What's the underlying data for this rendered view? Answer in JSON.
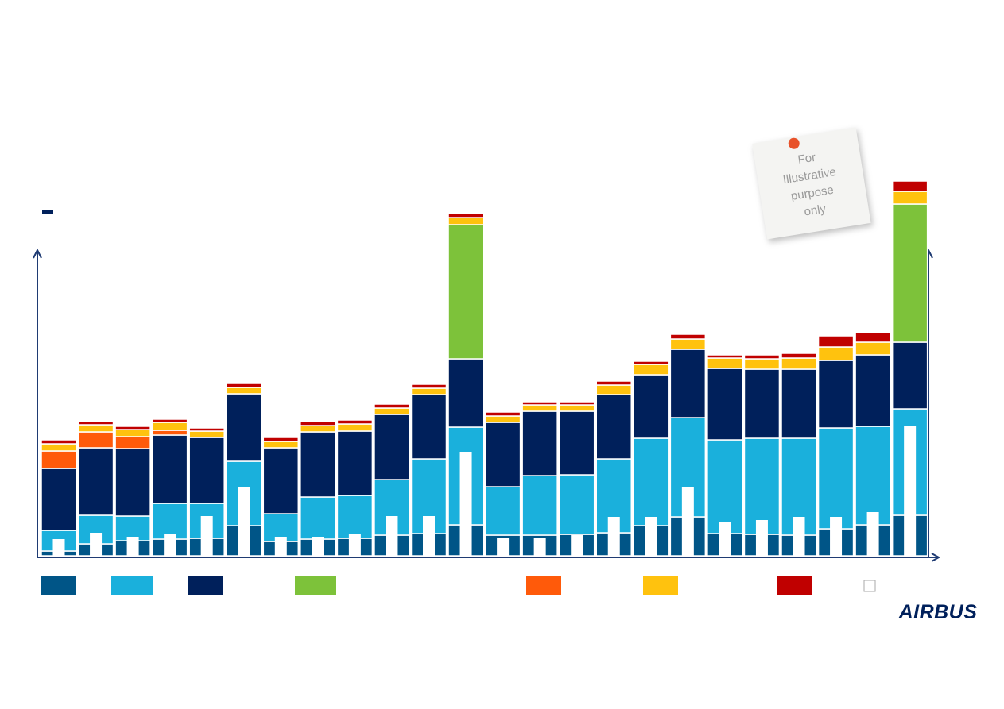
{
  "chart_data": {
    "type": "stacked_bar",
    "categories": [
      null,
      null,
      null,
      null,
      null,
      null,
      null,
      null,
      null,
      null,
      null,
      null,
      null,
      null,
      null,
      null,
      null,
      null,
      null,
      null,
      null,
      null,
      null,
      null
    ],
    "ylim": [
      0,
      472
    ],
    "series": [
      {
        "color": "#005587",
        "stack": true,
        "values": [
          6,
          15,
          19,
          21,
          22,
          38,
          18,
          21,
          22,
          26,
          28,
          39,
          26,
          26,
          27,
          29,
          38,
          49,
          28,
          27,
          26,
          34,
          39,
          51
        ]
      },
      {
        "color": "#1ab0dc",
        "stack": true,
        "values": [
          26,
          36,
          31,
          45,
          44,
          81,
          35,
          53,
          54,
          70,
          94,
          123,
          61,
          75,
          75,
          93,
          110,
          125,
          118,
          121,
          122,
          127,
          124,
          134
        ]
      },
      {
        "color": "#00205b",
        "stack": true,
        "values": [
          78,
          85,
          85,
          86,
          83,
          85,
          83,
          82,
          81,
          82,
          81,
          86,
          81,
          81,
          80,
          81,
          80,
          86,
          90,
          87,
          87,
          85,
          90,
          84
        ]
      },
      {
        "color": "#7dc23a",
        "stack": true,
        "values": [
          0,
          0,
          0,
          0,
          0,
          0,
          0,
          0,
          0,
          0,
          0,
          169,
          0,
          0,
          0,
          0,
          0,
          0,
          0,
          0,
          0,
          0,
          0,
          174
        ]
      },
      {
        "color": "#ff5a0a",
        "stack": true,
        "values": [
          22,
          20,
          15,
          6,
          0,
          0,
          0,
          0,
          0,
          0,
          0,
          0,
          0,
          0,
          0,
          0,
          0,
          0,
          0,
          0,
          0,
          0,
          0,
          0
        ]
      },
      {
        "color": "#ffc20e",
        "stack": true,
        "values": [
          9,
          9,
          9,
          10,
          8,
          8,
          8,
          8,
          9,
          8,
          8,
          9,
          8,
          8,
          8,
          12,
          13,
          13,
          13,
          13,
          14,
          17,
          16,
          16
        ]
      },
      {
        "color": "#c00000",
        "stack": true,
        "values": [
          5,
          4,
          4,
          4,
          4,
          5,
          5,
          5,
          5,
          5,
          5,
          5,
          5,
          4,
          4,
          5,
          4,
          6,
          4,
          5,
          6,
          14,
          12,
          13
        ]
      },
      {
        "color": "#ffffff",
        "stack": false,
        "values": [
          21,
          29,
          24,
          28,
          50,
          87,
          24,
          24,
          28,
          50,
          50,
          131,
          22,
          23,
          26,
          49,
          49,
          86,
          43,
          45,
          49,
          49,
          55,
          163
        ]
      }
    ]
  },
  "note": {
    "lines": [
      "For",
      "Illustrative",
      "purpose",
      "only"
    ]
  },
  "logo": "AIRBUS"
}
